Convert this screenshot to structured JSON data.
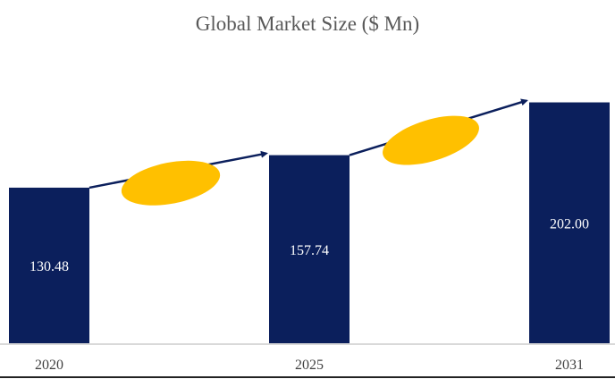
{
  "chart_data": {
    "type": "bar",
    "title": "Global Market Size ($ Mn)",
    "categories": [
      "2020",
      "2025",
      "2031"
    ],
    "values": [
      130.48,
      157.74,
      202.0
    ],
    "value_labels": [
      "130.48",
      "157.74",
      "202.00"
    ],
    "xlabel": "",
    "ylabel": "",
    "ylim": [
      0,
      216
    ],
    "grid": false,
    "colors": {
      "bar": "#0b1f5c",
      "ellipse": "#ffc000",
      "arrow": "#0b1f5c",
      "axis": "#d9d9d9",
      "title": "#595959"
    }
  }
}
